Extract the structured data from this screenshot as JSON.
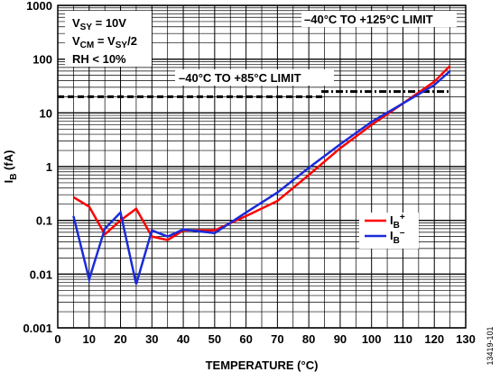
{
  "chart_data": {
    "type": "line",
    "xlabel": "TEMPERATURE (°C)",
    "ylabel_main": "I",
    "ylabel_sub": "B",
    "ylabel_unit": " (fA)",
    "xlim": [
      0,
      130
    ],
    "ylim": [
      0.001,
      1000
    ],
    "yscale": "log",
    "grid": true,
    "x_ticks": [
      "0",
      "10",
      "20",
      "30",
      "40",
      "50",
      "60",
      "70",
      "80",
      "90",
      "100",
      "110",
      "120",
      "130"
    ],
    "y_ticks": [
      {
        "value": 1000,
        "label": "1000"
      },
      {
        "value": 100,
        "label": "100"
      },
      {
        "value": 10,
        "label": "10"
      },
      {
        "value": 1,
        "label": "1"
      },
      {
        "value": 0.1,
        "label": "0.1"
      },
      {
        "value": 0.01,
        "label": "0.01"
      },
      {
        "value": 0.001,
        "label": "0.001"
      }
    ],
    "conditions": [
      {
        "main": "V",
        "sub": "SY",
        "rest": " = 10V"
      },
      {
        "main": "V",
        "sub": "CM",
        "rest": " = V",
        "sub2": "SY",
        "rest2": "/2"
      },
      {
        "main": "RH < 10%"
      }
    ],
    "limits": [
      {
        "label": "–40°C TO +85°C LIMIT",
        "x_range": [
          0,
          85
        ],
        "y": 20
      },
      {
        "label": "–40°C TO +125°C LIMIT",
        "x_range": [
          84,
          125
        ],
        "y": 25
      }
    ],
    "series": [
      {
        "name_main": "I",
        "name_sub": "B",
        "name_sup": "+",
        "color": "#ff0000",
        "points": [
          [
            5,
            0.27
          ],
          [
            10,
            0.18
          ],
          [
            15,
            0.055
          ],
          [
            20,
            0.1
          ],
          [
            25,
            0.165
          ],
          [
            30,
            0.05
          ],
          [
            35,
            0.043
          ],
          [
            40,
            0.065
          ],
          [
            50,
            0.065
          ],
          [
            60,
            0.12
          ],
          [
            70,
            0.23
          ],
          [
            80,
            0.7
          ],
          [
            90,
            2.2
          ],
          [
            100,
            6.0
          ],
          [
            110,
            15
          ],
          [
            120,
            38
          ],
          [
            125,
            75
          ]
        ]
      },
      {
        "name_main": "I",
        "name_sub": "B",
        "name_sup": "–",
        "color": "#1a2bd9",
        "points": [
          [
            5,
            0.12
          ],
          [
            10,
            0.008
          ],
          [
            15,
            0.07
          ],
          [
            20,
            0.14
          ],
          [
            25,
            0.0065
          ],
          [
            30,
            0.065
          ],
          [
            35,
            0.05
          ],
          [
            40,
            0.068
          ],
          [
            50,
            0.058
          ],
          [
            60,
            0.14
          ],
          [
            70,
            0.33
          ],
          [
            80,
            0.95
          ],
          [
            90,
            2.6
          ],
          [
            100,
            6.8
          ],
          [
            110,
            15
          ],
          [
            120,
            33
          ],
          [
            125,
            60
          ]
        ]
      }
    ],
    "figure_id": "13419-101"
  }
}
